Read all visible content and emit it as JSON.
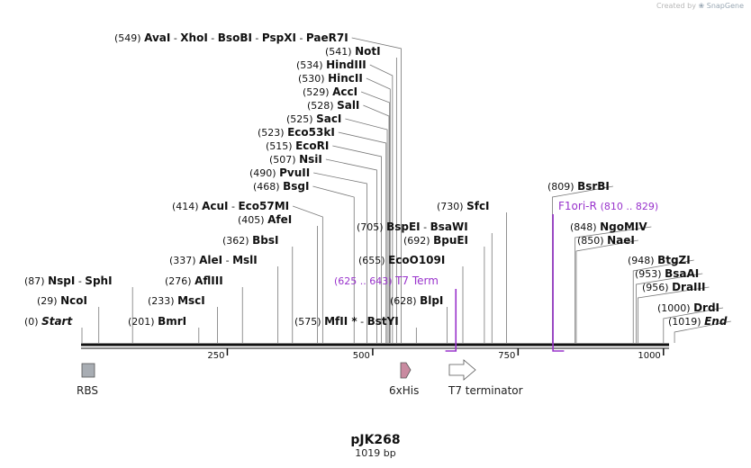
{
  "watermark": {
    "prefix": "Created by",
    "brand": "SnapGene"
  },
  "map": {
    "name": "pJK268",
    "length_label": "1019 bp",
    "length_bp": 1019,
    "ruler_ticks": [
      "250",
      "500",
      "750",
      "1000"
    ]
  },
  "sites": [
    {
      "pos": "(549)",
      "names": [
        "AvaI",
        "XhoI",
        "BsoBI",
        "PspXI",
        "PaeR7I"
      ],
      "bp": 549
    },
    {
      "pos": "(541)",
      "names": [
        "NotI"
      ],
      "bp": 541
    },
    {
      "pos": "(534)",
      "names": [
        "HindIII"
      ],
      "bp": 534
    },
    {
      "pos": "(530)",
      "names": [
        "HincII"
      ],
      "bp": 530
    },
    {
      "pos": "(529)",
      "names": [
        "AccI"
      ],
      "bp": 529
    },
    {
      "pos": "(528)",
      "names": [
        "SalI"
      ],
      "bp": 528
    },
    {
      "pos": "(525)",
      "names": [
        "SacI"
      ],
      "bp": 525
    },
    {
      "pos": "(523)",
      "names": [
        "Eco53kI"
      ],
      "bp": 523
    },
    {
      "pos": "(515)",
      "names": [
        "EcoRI"
      ],
      "bp": 515
    },
    {
      "pos": "(507)",
      "names": [
        "NsiI"
      ],
      "bp": 507
    },
    {
      "pos": "(490)",
      "names": [
        "PvuII"
      ],
      "bp": 490
    },
    {
      "pos": "(468)",
      "names": [
        "BsgI"
      ],
      "bp": 468
    },
    {
      "pos": "(414)",
      "names": [
        "AcuI",
        "Eco57MI"
      ],
      "bp": 414
    },
    {
      "pos": "(405)",
      "names": [
        "AfeI"
      ],
      "bp": 405
    },
    {
      "pos": "(362)",
      "names": [
        "BbsI"
      ],
      "bp": 362
    },
    {
      "pos": "(337)",
      "names": [
        "AleI",
        "MslI"
      ],
      "bp": 337
    },
    {
      "pos": "(276)",
      "names": [
        "AflIII"
      ],
      "bp": 276
    },
    {
      "pos": "(233)",
      "names": [
        "MscI"
      ],
      "bp": 233
    },
    {
      "pos": "(201)",
      "names": [
        "BmrI"
      ],
      "bp": 201
    },
    {
      "pos": "(87)",
      "names": [
        "NspI",
        "SphI"
      ],
      "bp": 87
    },
    {
      "pos": "(29)",
      "names": [
        "NcoI"
      ],
      "bp": 29
    },
    {
      "pos": "(0)",
      "names": [
        "Start"
      ],
      "bp": 0,
      "italic": true
    },
    {
      "pos": "(575)",
      "names": [
        "MfII *",
        "BstYI"
      ],
      "bp": 575
    },
    {
      "pos": "(628)",
      "names": [
        "BlpI"
      ],
      "bp": 628
    },
    {
      "pos": "(655)",
      "names": [
        "EcoO109I"
      ],
      "bp": 655
    },
    {
      "pos": "(705)",
      "names": [
        "BspEI",
        "BsaWI"
      ],
      "bp": 705
    },
    {
      "pos": "(692)",
      "names": [
        "BpuEI"
      ],
      "bp": 692
    },
    {
      "pos": "(730)",
      "names": [
        "SfcI"
      ],
      "bp": 730
    },
    {
      "pos": "(809)",
      "names": [
        "BsrBI"
      ],
      "bp": 809
    },
    {
      "pos": "(848)",
      "names": [
        "NgoMIV"
      ],
      "bp": 848
    },
    {
      "pos": "(850)",
      "names": [
        "NaeI"
      ],
      "bp": 850
    },
    {
      "pos": "(948)",
      "names": [
        "BtgZI"
      ],
      "bp": 948
    },
    {
      "pos": "(953)",
      "names": [
        "BsaAI"
      ],
      "bp": 953
    },
    {
      "pos": "(956)",
      "names": [
        "DraIII"
      ],
      "bp": 956
    },
    {
      "pos": "(1000)",
      "names": [
        "DrdI"
      ],
      "bp": 1000
    },
    {
      "pos": "(1019)",
      "names": [
        "End"
      ],
      "bp": 1019,
      "italic": true
    }
  ],
  "primers": [
    {
      "name": "T7 Term",
      "range": "(625 .. 643)",
      "start": 625,
      "end": 643
    },
    {
      "name": "F1ori-R",
      "range": "(810 .. 829)",
      "start": 810,
      "end": 829
    }
  ],
  "features": [
    {
      "name": "RBS",
      "type": "box",
      "color": "#a8adb3"
    },
    {
      "name": "6xHis",
      "type": "arrow",
      "color": "#c98aa0"
    },
    {
      "name": "T7 terminator",
      "type": "arrow",
      "color": "#ffffff"
    }
  ],
  "colors": {
    "primer": "#9933cc",
    "line": "#777777",
    "backbone": "#111111"
  }
}
